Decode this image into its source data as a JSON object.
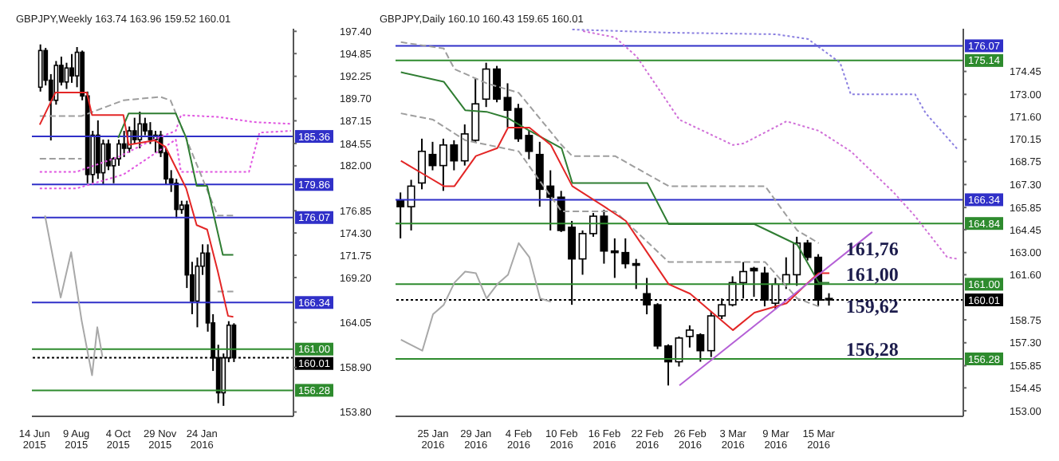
{
  "chart_data": [
    {
      "type": "candlestick",
      "title": "GBPJPY,Weekly  163.74 163.96 159.52 160.01",
      "categories": [
        "14 Jun 2015",
        null,
        null,
        null,
        null,
        null,
        null,
        null,
        "9 Aug 2015",
        null,
        null,
        null,
        null,
        null,
        null,
        null,
        "4 Oct 2015",
        null,
        null,
        null,
        null,
        null,
        null,
        null,
        "29 Nov 2015",
        null,
        null,
        null,
        null,
        null,
        null,
        null,
        "24 Jan 2016",
        null,
        null,
        null,
        null,
        null,
        null,
        null,
        null,
        null,
        null,
        null,
        null,
        null,
        null,
        null,
        null,
        null
      ],
      "ohlc": [
        null,
        [
          191.0,
          195.9,
          190.5,
          195.2
        ],
        [
          195.2,
          195.5,
          191.2,
          191.8
        ],
        [
          191.8,
          192.5,
          184.9,
          189.5
        ],
        [
          189.5,
          194.0,
          189.0,
          193.5
        ],
        [
          193.5,
          194.5,
          191.2,
          191.6
        ],
        [
          191.6,
          193.8,
          190.8,
          193.2
        ],
        [
          193.2,
          194.8,
          191.5,
          192.3
        ],
        [
          192.3,
          195.6,
          191.0,
          195.0
        ],
        [
          195.0,
          195.2,
          189.5,
          190.0
        ],
        [
          190.0,
          190.5,
          180.0,
          181.0
        ],
        [
          181.0,
          186.0,
          180.0,
          185.5
        ],
        [
          185.5,
          187.2,
          180.5,
          181.2
        ],
        [
          181.2,
          185.0,
          179.8,
          184.5
        ],
        [
          184.5,
          185.0,
          181.5,
          182.0
        ],
        [
          182.0,
          183.0,
          180.0,
          182.8
        ],
        [
          182.8,
          185.0,
          182.0,
          184.5
        ],
        [
          184.5,
          186.0,
          183.0,
          184.0
        ],
        [
          184.0,
          186.5,
          183.5,
          186.0
        ],
        [
          186.0,
          187.5,
          184.5,
          185.0
        ],
        [
          185.0,
          188.2,
          184.0,
          186.8
        ],
        [
          186.8,
          187.5,
          185.5,
          186.0
        ],
        [
          186.0,
          187.0,
          184.5,
          185.0
        ],
        [
          185.0,
          186.0,
          183.5,
          185.5
        ],
        [
          185.5,
          186.0,
          183.0,
          183.5
        ],
        [
          183.5,
          184.0,
          179.8,
          180.5
        ],
        [
          180.5,
          181.5,
          179.0,
          180.0
        ],
        [
          180.0,
          180.5,
          176.0,
          177.0
        ],
        [
          177.0,
          178.0,
          176.5,
          177.5
        ],
        [
          177.5,
          178.0,
          168.0,
          169.5
        ],
        [
          169.5,
          171.0,
          165.0,
          166.5
        ],
        [
          166.5,
          171.5,
          163.5,
          170.5
        ],
        [
          170.5,
          173.0,
          169.5,
          172.0
        ],
        [
          172.0,
          173.0,
          163.0,
          164.0
        ],
        [
          164.0,
          165.0,
          158.5,
          160.0
        ],
        [
          160.0,
          161.5,
          154.8,
          156.0
        ],
        [
          156.0,
          160.5,
          154.5,
          160.0
        ],
        [
          160.0,
          164.2,
          159.5,
          163.74
        ],
        [
          163.74,
          163.96,
          159.52,
          160.01
        ],
        null,
        null,
        null,
        null,
        null,
        null,
        null,
        null,
        null,
        null,
        null
      ],
      "series": [
        {
          "type": "line",
          "color": "#e055e0",
          "line_style": "dotted",
          "values": [
            null,
            181.3,
            null,
            null,
            null,
            null,
            null,
            null,
            181.3,
            null,
            null,
            null,
            null,
            null,
            null,
            null,
            183.0,
            null,
            null,
            null,
            null,
            null,
            184.8,
            null,
            null,
            null,
            null,
            186.0,
            187.8,
            null,
            null,
            null,
            null,
            null,
            null,
            187.6,
            null,
            null,
            null,
            null,
            null,
            null,
            187.0,
            null,
            null,
            null,
            null,
            null,
            null,
            186.8
          ]
        },
        {
          "type": "line",
          "color": "#e055e0",
          "line_style": "dotted",
          "values": [
            null,
            179.4,
            null,
            null,
            null,
            null,
            null,
            null,
            179.4,
            null,
            null,
            null,
            null,
            null,
            null,
            null,
            null,
            181.0,
            null,
            null,
            null,
            null,
            null,
            null,
            null,
            null,
            null,
            185.0,
            181.3,
            null,
            null,
            null,
            null,
            null,
            null,
            null,
            null,
            null,
            null,
            null,
            null,
            181.3,
            null,
            185.8,
            null,
            null,
            null,
            null,
            null,
            186.0
          ]
        },
        {
          "type": "line",
          "color": "#9e9e9e",
          "line_style": "dashed",
          "values": [
            null,
            187.7,
            null,
            null,
            null,
            null,
            null,
            null,
            null,
            187.7,
            null,
            null,
            null,
            null,
            null,
            null,
            null,
            189.5,
            null,
            null,
            null,
            null,
            null,
            null,
            189.9,
            null,
            189.5,
            null,
            null,
            null,
            null,
            null,
            null,
            null,
            null,
            176.3,
            null,
            null,
            176.3,
            null,
            null,
            null,
            null,
            null,
            null,
            null,
            null,
            null,
            null,
            null
          ]
        },
        {
          "type": "line",
          "color": "#9e9e9e",
          "line_style": "dashed",
          "values": [
            null,
            182.8,
            null,
            null,
            null,
            null,
            null,
            null,
            null,
            182.8,
            null,
            null,
            null,
            null,
            null,
            null,
            null,
            null,
            null,
            null,
            null,
            null,
            null,
            null,
            null,
            null,
            null,
            null,
            null,
            null,
            null,
            null,
            null,
            null,
            null,
            null,
            null,
            null,
            null,
            null,
            null,
            null,
            null,
            null,
            null,
            null,
            null,
            null,
            null,
            null
          ]
        },
        {
          "type": "line",
          "color": "#9e9e9e",
          "line_style": "dashed",
          "values": [
            null,
            null,
            null,
            null,
            null,
            null,
            null,
            null,
            null,
            null,
            null,
            null,
            null,
            null,
            null,
            null,
            null,
            null,
            null,
            null,
            null,
            null,
            null,
            null,
            null,
            null,
            null,
            null,
            null,
            null,
            null,
            null,
            null,
            null,
            null,
            167.6,
            null,
            null,
            167.6,
            null,
            null,
            null,
            null,
            null,
            null,
            null,
            null,
            null,
            null,
            null
          ]
        },
        {
          "type": "line",
          "color": "#a8a8a8",
          "line_style": "solid",
          "values": [
            null,
            null,
            176.3,
            null,
            null,
            166.9,
            null,
            172.1,
            null,
            164.3,
            null,
            158.0,
            163.5,
            160.1,
            null,
            null,
            null,
            null,
            null,
            null,
            null,
            null,
            null,
            null,
            null,
            null,
            null,
            null,
            null,
            null,
            null,
            null,
            null,
            null,
            null,
            null,
            null,
            null,
            null,
            null,
            null,
            null,
            null,
            null,
            null,
            null,
            null,
            null,
            null,
            null
          ]
        },
        {
          "type": "line",
          "color": "#2f7d32",
          "line_style": "solid",
          "values": [
            null,
            null,
            null,
            null,
            null,
            null,
            null,
            null,
            null,
            null,
            null,
            null,
            null,
            null,
            null,
            null,
            185.2,
            null,
            188.0,
            null,
            null,
            null,
            null,
            null,
            null,
            null,
            null,
            188.0,
            null,
            185.2,
            null,
            179.7,
            null,
            179.7,
            null,
            null,
            171.8,
            null,
            171.8,
            null,
            null,
            null,
            null,
            null,
            null,
            null,
            null,
            null,
            null,
            null
          ]
        },
        {
          "type": "line",
          "color": "#e32626",
          "line_style": "solid",
          "values": [
            null,
            186.7,
            null,
            null,
            190.4,
            null,
            null,
            null,
            null,
            null,
            190.4,
            187.8,
            null,
            null,
            null,
            null,
            null,
            187.8,
            184.4,
            null,
            null,
            null,
            null,
            184.9,
            null,
            184.2,
            null,
            null,
            null,
            179.4,
            null,
            175.2,
            null,
            174.7,
            null,
            170.0,
            null,
            164.8,
            164.7,
            null,
            null,
            null,
            null,
            null,
            null,
            null,
            null,
            null,
            null,
            null
          ]
        }
      ],
      "ylim": [
        153.3,
        197.7
      ],
      "yticks": [
        {
          "value": 197.4,
          "label": "197.40"
        },
        {
          "value": 194.85,
          "label": "194.85"
        },
        {
          "value": 192.25,
          "label": "192.25"
        },
        {
          "value": 189.7,
          "label": "189.70"
        },
        {
          "value": 187.15,
          "label": "187.15"
        },
        {
          "value": 184.55,
          "label": "184.55"
        },
        {
          "value": 182.0,
          "label": "182.00"
        },
        {
          "value": 176.85,
          "label": "176.85"
        },
        {
          "value": 174.3,
          "label": "174.30"
        },
        {
          "value": 171.75,
          "label": "171.75"
        },
        {
          "value": 169.2,
          "label": "169.20"
        },
        {
          "value": 164.05,
          "label": "164.05"
        },
        {
          "value": 158.9,
          "label": "158.90"
        },
        {
          "value": 153.8,
          "label": "153.80"
        }
      ],
      "ref_lines": [
        {
          "axis": "y",
          "value": 185.36,
          "label": "185.36",
          "color": "#3030c8"
        },
        {
          "axis": "y",
          "value": 179.86,
          "label": "179.86",
          "color": "#3030c8"
        },
        {
          "axis": "y",
          "value": 176.07,
          "label": "176.07",
          "color": "#3030c8"
        },
        {
          "axis": "y",
          "value": 166.34,
          "label": "166.34",
          "color": "#3030c8"
        },
        {
          "axis": "y",
          "value": 161.0,
          "label": "161.00",
          "color": "#2e8b2e"
        },
        {
          "axis": "y",
          "value": 160.01,
          "label": "160.01",
          "color": "#000000",
          "line_style": "dotted"
        },
        {
          "axis": "y",
          "value": 156.28,
          "label": "156.28",
          "color": "#2e8b2e"
        }
      ]
    },
    {
      "type": "candlestick",
      "title": "GBPJPY,Daily  160.10 160.43 159.65 160.01",
      "categories": [
        null,
        null,
        null,
        "25 Jan 2016",
        null,
        null,
        null,
        "29 Jan 2016",
        null,
        null,
        null,
        "4 Feb 2016",
        null,
        null,
        null,
        "10 Feb 2016",
        null,
        null,
        null,
        "16 Feb 2016",
        null,
        null,
        null,
        "22 Feb 2016",
        null,
        null,
        null,
        "26 Feb 2016",
        null,
        null,
        null,
        "3 Mar 2016",
        null,
        null,
        null,
        "9 Mar 2016",
        null,
        null,
        null,
        "15 Mar 2016",
        null,
        null,
        null,
        null,
        null,
        null,
        null,
        null,
        null,
        null,
        null,
        null,
        null
      ],
      "ohlc": [
        [
          166.3,
          166.8,
          163.9,
          165.9
        ],
        [
          165.9,
          167.6,
          164.4,
          167.2
        ],
        [
          167.4,
          170.2,
          167.0,
          169.4
        ],
        [
          169.2,
          170.0,
          168.2,
          168.5
        ],
        [
          168.5,
          170.2,
          166.9,
          169.8
        ],
        [
          169.8,
          170.1,
          168.2,
          168.8
        ],
        [
          168.8,
          171.1,
          168.5,
          170.5
        ],
        [
          170.1,
          174.0,
          170.0,
          172.4
        ],
        [
          172.7,
          175.0,
          172.2,
          174.6
        ],
        [
          174.6,
          174.8,
          172.5,
          172.7
        ],
        [
          172.8,
          173.7,
          170.9,
          172.0
        ],
        [
          172.1,
          172.4,
          170.0,
          170.2
        ],
        [
          170.4,
          170.7,
          168.9,
          169.4
        ],
        [
          169.2,
          170.0,
          165.9,
          167.0
        ],
        [
          167.2,
          168.2,
          164.4,
          166.5
        ],
        [
          166.5,
          166.9,
          164.3,
          164.4
        ],
        [
          164.6,
          165.0,
          159.7,
          162.6
        ],
        [
          162.6,
          164.4,
          161.6,
          164.2
        ],
        [
          164.2,
          165.5,
          164.0,
          165.3
        ],
        [
          165.3,
          165.7,
          162.3,
          163.1
        ],
        [
          163.1,
          163.9,
          161.4,
          163.0
        ],
        [
          163.0,
          163.9,
          162.0,
          162.3
        ],
        [
          162.3,
          162.6,
          160.7,
          162.2
        ],
        [
          160.4,
          161.4,
          159.1,
          159.7
        ],
        [
          159.7,
          159.8,
          156.9,
          157.1
        ],
        [
          157.1,
          157.2,
          154.6,
          156.1
        ],
        [
          156.1,
          157.7,
          155.8,
          157.6
        ],
        [
          157.7,
          158.4,
          157.0,
          158.1
        ],
        [
          157.8,
          157.9,
          156.1,
          156.8
        ],
        [
          156.8,
          159.3,
          156.4,
          159.0
        ],
        [
          159.0,
          160.1,
          158.8,
          159.7
        ],
        [
          159.7,
          161.5,
          159.6,
          161.1
        ],
        [
          161.1,
          162.4,
          160.1,
          161.8
        ],
        [
          162.0,
          162.1,
          160.2,
          161.85
        ],
        [
          161.7,
          162.1,
          159.6,
          160.0
        ],
        [
          159.8,
          161.4,
          159.4,
          161.0
        ],
        [
          161.0,
          162.7,
          160.7,
          161.6
        ],
        [
          161.6,
          164.0,
          160.9,
          163.6
        ],
        [
          163.6,
          163.8,
          162.5,
          162.7
        ],
        [
          162.7,
          162.9,
          159.6,
          160.0
        ],
        [
          160.1,
          160.43,
          159.65,
          160.01
        ],
        null,
        null,
        null,
        null,
        null,
        null,
        null,
        null,
        null,
        null,
        null,
        null
      ],
      "series": [
        {
          "type": "line",
          "color": "#8a7fe0",
          "line_style": "dotted",
          "values": [
            null,
            null,
            null,
            null,
            null,
            null,
            null,
            null,
            null,
            null,
            null,
            null,
            null,
            null,
            null,
            null,
            177.1,
            null,
            null,
            null,
            null,
            null,
            null,
            null,
            null,
            176.9,
            null,
            null,
            null,
            null,
            null,
            null,
            null,
            null,
            null,
            176.8,
            null,
            null,
            176.5,
            null,
            null,
            175.0,
            173.0,
            null,
            null,
            null,
            null,
            null,
            173.0,
            171.8,
            null,
            null,
            169.5
          ]
        },
        {
          "type": "line",
          "color": "#d070d8",
          "line_style": "dotted",
          "values": [
            null,
            null,
            null,
            null,
            null,
            null,
            null,
            null,
            null,
            null,
            null,
            null,
            null,
            null,
            null,
            null,
            null,
            177.0,
            null,
            null,
            176.6,
            null,
            175.4,
            null,
            null,
            null,
            171.4,
            null,
            null,
            null,
            null,
            169.8,
            169.9,
            null,
            null,
            null,
            171.3,
            null,
            null,
            170.7,
            null,
            null,
            169.4,
            null,
            null,
            null,
            166.8,
            null,
            165.3,
            null,
            null,
            162.7,
            162.6
          ]
        },
        {
          "type": "line",
          "color": "#9e9e9e",
          "line_style": "dashed",
          "values": [
            176.3,
            null,
            null,
            null,
            175.9,
            174.6,
            null,
            null,
            173.7,
            null,
            null,
            173.1,
            null,
            null,
            null,
            169.8,
            169.1,
            null,
            null,
            null,
            169.1,
            null,
            null,
            null,
            null,
            167.2,
            null,
            null,
            null,
            null,
            null,
            null,
            null,
            null,
            167.2,
            null,
            null,
            164.4,
            null,
            163.6,
            null,
            null,
            null,
            null,
            null,
            null,
            null,
            null,
            null,
            null,
            null,
            null,
            null
          ]
        },
        {
          "type": "line",
          "color": "#9e9e9e",
          "line_style": "dashed",
          "values": [
            171.8,
            null,
            null,
            171.4,
            null,
            null,
            170.1,
            null,
            null,
            null,
            null,
            169.4,
            null,
            null,
            null,
            165.6,
            null,
            null,
            null,
            null,
            165.6,
            null,
            null,
            null,
            null,
            162.4,
            null,
            null,
            null,
            null,
            null,
            null,
            null,
            null,
            162.4,
            null,
            null,
            160.1,
            null,
            159.6,
            null,
            null,
            null,
            null,
            null,
            null,
            null,
            null,
            null,
            null,
            null,
            null,
            null
          ]
        },
        {
          "type": "line",
          "color": "#a8a8a8",
          "line_style": "solid",
          "values": [
            157.5,
            null,
            156.8,
            159.1,
            159.7,
            161.1,
            161.8,
            161.7,
            160.1,
            161.0,
            161.6,
            163.6,
            162.7,
            160.1,
            159.9,
            null,
            null,
            null,
            null,
            null,
            null,
            null,
            null,
            null,
            null,
            null,
            null,
            null,
            null,
            null,
            null,
            null,
            null,
            null,
            null,
            null,
            null,
            null,
            null,
            null,
            null,
            null,
            null,
            null,
            null,
            null,
            null,
            null,
            null,
            null,
            null,
            null,
            null
          ]
        },
        {
          "type": "line",
          "color": "#2f7d32",
          "line_style": "solid",
          "values": [
            174.4,
            null,
            null,
            null,
            173.8,
            null,
            172.0,
            null,
            171.9,
            null,
            171.5,
            null,
            170.7,
            null,
            null,
            169.6,
            167.4,
            null,
            null,
            null,
            null,
            null,
            null,
            167.4,
            null,
            164.8,
            null,
            null,
            null,
            null,
            null,
            null,
            null,
            164.8,
            null,
            null,
            null,
            163.5,
            null,
            161.1,
            161.1,
            null,
            null,
            null,
            null,
            null,
            null,
            null,
            null,
            null,
            null,
            null,
            null
          ]
        },
        {
          "type": "line",
          "color": "#e32626",
          "line_style": "solid",
          "values": [
            168.8,
            null,
            168.0,
            null,
            167.2,
            167.2,
            null,
            169.1,
            null,
            169.6,
            170.9,
            null,
            170.9,
            null,
            169.8,
            null,
            167.2,
            null,
            null,
            165.9,
            null,
            165.0,
            164.0,
            null,
            null,
            161.0,
            null,
            160.4,
            null,
            null,
            null,
            158.1,
            null,
            159.2,
            null,
            null,
            159.8,
            null,
            161.1,
            161.7,
            161.7,
            null,
            null,
            null,
            null,
            null,
            null,
            null,
            null,
            null,
            null,
            null,
            null
          ]
        },
        {
          "type": "line",
          "color": "#b45fd6",
          "line_style": "solid",
          "values": [
            null,
            null,
            null,
            null,
            null,
            null,
            null,
            null,
            null,
            null,
            null,
            null,
            null,
            null,
            null,
            null,
            null,
            null,
            null,
            null,
            null,
            null,
            null,
            null,
            null,
            null,
            154.6,
            null,
            null,
            null,
            null,
            null,
            null,
            null,
            null,
            null,
            null,
            null,
            null,
            null,
            null,
            null,
            null,
            null,
            164.3,
            null,
            null,
            null,
            null,
            null,
            null,
            null,
            null
          ]
        }
      ],
      "ylim": [
        152.65,
        177.15
      ],
      "yticks": [
        {
          "value": 174.45,
          "label": "174.45"
        },
        {
          "value": 173.0,
          "label": "173.00"
        },
        {
          "value": 171.6,
          "label": "171.60"
        },
        {
          "value": 170.15,
          "label": "170.15"
        },
        {
          "value": 168.75,
          "label": "168.75"
        },
        {
          "value": 167.3,
          "label": "167.30"
        },
        {
          "value": 165.85,
          "label": "165.85"
        },
        {
          "value": 164.45,
          "label": "164.45"
        },
        {
          "value": 163.0,
          "label": "163.00"
        },
        {
          "value": 161.6,
          "label": "161.60"
        },
        {
          "value": 158.75,
          "label": "158.75"
        },
        {
          "value": 157.3,
          "label": "157.30"
        },
        {
          "value": 155.85,
          "label": "155.85"
        },
        {
          "value": 154.45,
          "label": "154.45"
        },
        {
          "value": 153.0,
          "label": "153.00"
        }
      ],
      "ref_lines": [
        {
          "axis": "y",
          "value": 176.07,
          "label": "176.07",
          "color": "#3030c8"
        },
        {
          "axis": "y",
          "value": 175.14,
          "label": "175.14",
          "color": "#2e8b2e"
        },
        {
          "axis": "y",
          "value": 166.34,
          "label": "166.34",
          "color": "#3030c8"
        },
        {
          "axis": "y",
          "value": 164.84,
          "label": "164.84",
          "color": "#2e8b2e"
        },
        {
          "axis": "y",
          "value": 161.0,
          "label": "161.00",
          "color": "#2e8b2e"
        },
        {
          "axis": "y",
          "value": 160.01,
          "label": "160.01",
          "color": "#000000",
          "line_style": "dotted"
        },
        {
          "axis": "y",
          "value": 156.28,
          "label": "156.28",
          "color": "#2e8b2e"
        }
      ],
      "annotations": [
        "161,76",
        "161,00",
        "159,62",
        "156,28"
      ]
    }
  ]
}
